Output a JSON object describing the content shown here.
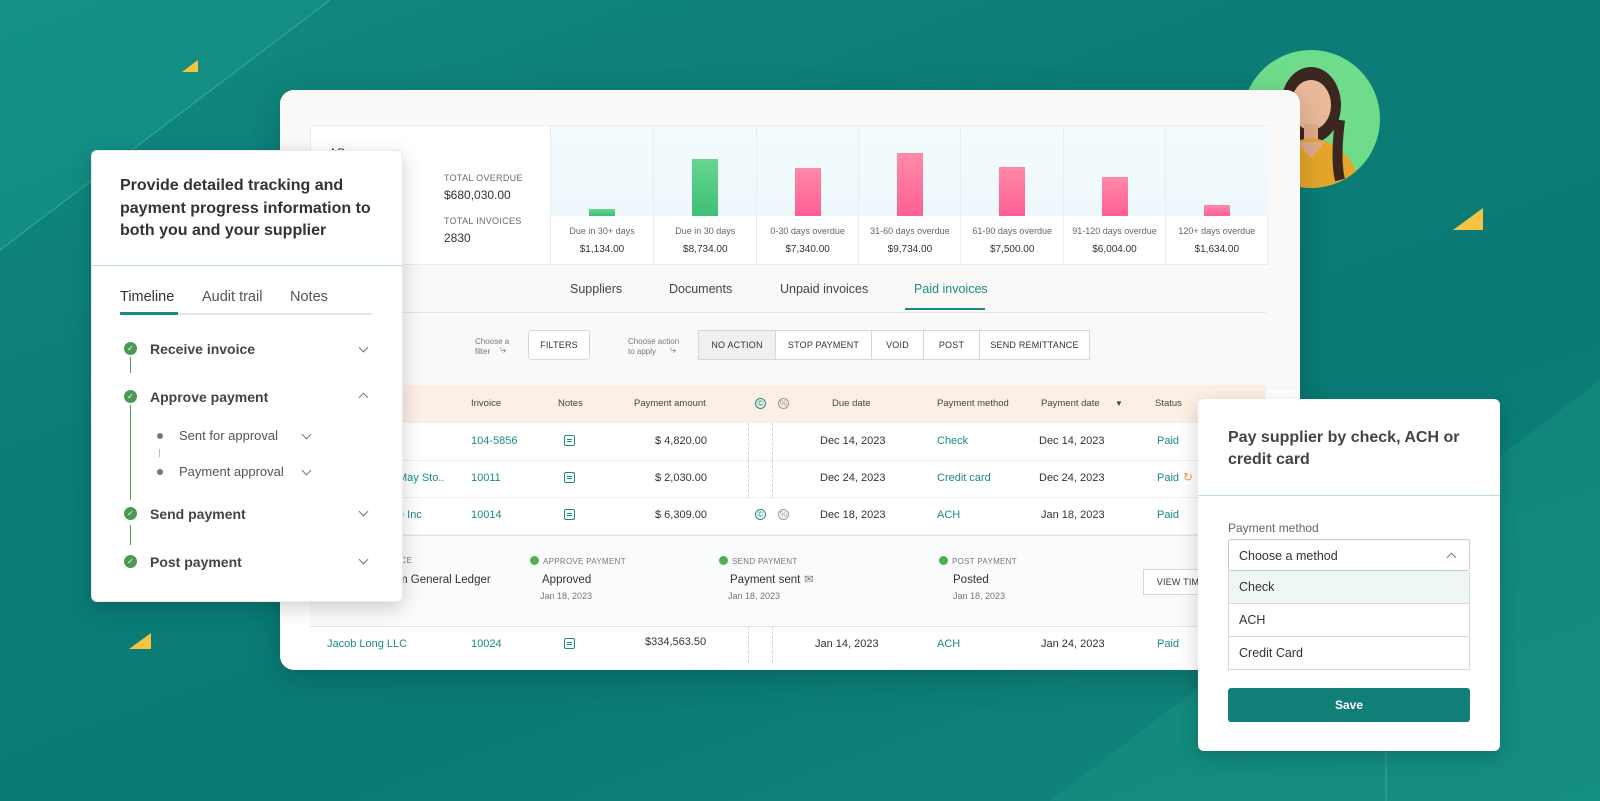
{
  "colors": {
    "accent": "#1a8a86",
    "bg_teal": "#0b7c76",
    "check_green": "#4a9a52",
    "bar_green": "#5ccf82",
    "bar_pink": "#ff6f9c",
    "yellow": "#f5c542"
  },
  "summary": {
    "partial_label": "AP",
    "overdue_label": "TOTAL OVERDUE",
    "overdue_value": "$680,030.00",
    "invoices_label": "TOTAL INVOICES",
    "invoices_value": "2830"
  },
  "chart_data": {
    "type": "bar",
    "categories": [
      "Due in 30+ days",
      "Due in 30 days",
      "0-30 days overdue",
      "31-60 days overdue",
      "61-90 days overdue",
      "91-120 days overdue",
      "120+ days overdue"
    ],
    "values": [
      1134,
      8734,
      7340,
      9734,
      7500,
      6004,
      1634
    ],
    "labels": [
      "$1,134.00",
      "$8,734.00",
      "$7,340.00",
      "$9,734.00",
      "$7,500.00",
      "$6,004.00",
      "$1,634.00"
    ],
    "colors": [
      "green",
      "green",
      "pink",
      "pink",
      "pink",
      "pink",
      "pink"
    ]
  },
  "tabs": [
    "Suppliers",
    "Documents",
    "Unpaid invoices",
    "Paid invoices"
  ],
  "active_tab": "Paid invoices",
  "filter_hint": "Choose a filter",
  "filters_btn": "FILTERS",
  "action_hint": "Choose action to apply",
  "actions": [
    "NO ACTION",
    "STOP PAYMENT",
    "VOID",
    "POST",
    "SEND REMITTANCE"
  ],
  "columns": {
    "invoice": "Invoice",
    "notes": "Notes",
    "amount": "Payment amount",
    "due": "Due date",
    "method": "Payment method",
    "pdate": "Payment date",
    "status": "Status"
  },
  "rows": [
    {
      "supplier": "",
      "invoice": "104-5856",
      "amount": "$ 4,820.00",
      "due": "Dec 14, 2023",
      "method": "Check",
      "pdate": "Dec 14, 2023",
      "status": "Paid"
    },
    {
      "supplier": "May Sto..",
      "invoice": "10011",
      "amount": "$ 2,030.00",
      "due": "Dec 24, 2023",
      "method": "Credit card",
      "pdate": "Dec 24, 2023",
      "status": "Paid"
    },
    {
      "supplier": "e Inc",
      "invoice": "10014",
      "amount": "$ 6,309.00",
      "due": "Dec 18, 2023",
      "method": "ACH",
      "pdate": "Jan 18, 2023",
      "status": "Paid"
    },
    {
      "supplier": "Jacob Long LLC",
      "invoice": "10024",
      "amount": "$334,563.50",
      "due": "Jan 14, 2023",
      "method": "ACH",
      "pdate": "Jan 24, 2023",
      "status": "Paid"
    }
  ],
  "progress": [
    {
      "label": "ICE",
      "value": "m General Ledger",
      "date": ""
    },
    {
      "label": "APPROVE PAYMENT",
      "value": "Approved",
      "date": "Jan 18, 2023"
    },
    {
      "label": "SEND PAYMENT",
      "value": "Payment sent",
      "date": "Jan 18, 2023"
    },
    {
      "label": "POST PAYMENT",
      "value": "Posted",
      "date": "Jan 18, 2023"
    }
  ],
  "view_timeline": "VIEW TIM",
  "left_card": {
    "title": "Provide detailed tracking and payment progress information to both you and your supplier",
    "tabs": [
      "Timeline",
      "Audit trail",
      "Notes"
    ],
    "steps": [
      "Receive invoice",
      "Approve payment",
      "Send payment",
      "Post payment"
    ],
    "substeps": [
      "Sent for approval",
      "Payment approval"
    ]
  },
  "right_card": {
    "title": "Pay supplier by check, ACH or credit card",
    "field_label": "Payment method",
    "placeholder": "Choose a method",
    "options": [
      "Check",
      "ACH",
      "Credit Card"
    ],
    "save": "Save"
  }
}
